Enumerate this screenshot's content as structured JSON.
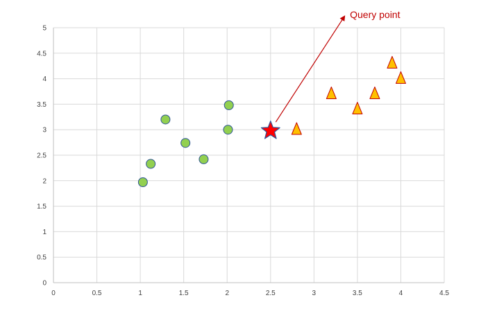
{
  "chart_data": {
    "type": "scatter",
    "xlim": [
      0,
      4.5
    ],
    "ylim": [
      0,
      5
    ],
    "x_ticks": [
      "0",
      "0.5",
      "1",
      "1.5",
      "2",
      "2.5",
      "3",
      "3.5",
      "4",
      "4.5"
    ],
    "y_ticks": [
      "0",
      "0.5",
      "1",
      "1.5",
      "2",
      "2.5",
      "3",
      "3.5",
      "4",
      "4.5",
      "5"
    ],
    "grid": true,
    "legend": "none",
    "series": [
      {
        "marker": "circle",
        "color": "#92D050",
        "stroke": "#2F5597",
        "points": [
          [
            1.03,
            1.97
          ],
          [
            1.12,
            2.33
          ],
          [
            1.29,
            3.2
          ],
          [
            1.52,
            2.74
          ],
          [
            1.73,
            2.42
          ],
          [
            2.01,
            3.0
          ],
          [
            2.02,
            3.48
          ]
        ]
      },
      {
        "marker": "triangle",
        "color": "#FFC000",
        "stroke": "#C00000",
        "points": [
          [
            2.8,
            3.0
          ],
          [
            3.2,
            3.7
          ],
          [
            3.5,
            3.4
          ],
          [
            3.7,
            3.7
          ],
          [
            3.9,
            4.3
          ],
          [
            4.0,
            4.0
          ]
        ]
      },
      {
        "marker": "star",
        "color": "#FF0000",
        "stroke": "#2F5597",
        "points": [
          [
            2.5,
            2.98
          ]
        ]
      }
    ],
    "annotations": [
      {
        "text": "Query point",
        "color": "#C00000",
        "arrow_from": [
          2.56,
          3.15
        ],
        "arrow_to": [
          3.35,
          5.22
        ]
      }
    ]
  }
}
